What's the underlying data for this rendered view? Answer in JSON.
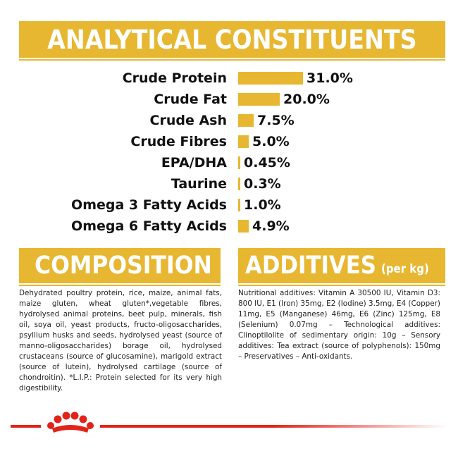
{
  "analytical": {
    "title": "ANALYTICAL CONSTITUENTS",
    "rows": [
      {
        "label": "Crude Protein",
        "value": "31.0%",
        "fraction": 0.31
      },
      {
        "label": "Crude Fat",
        "value": "20.0%",
        "fraction": 0.2
      },
      {
        "label": "Crude Ash",
        "value": "7.5%",
        "fraction": 0.075
      },
      {
        "label": "Crude Fibres",
        "value": "5.0%",
        "fraction": 0.05
      },
      {
        "label": "EPA/DHA",
        "value": "0.45%",
        "fraction": 0.0045
      },
      {
        "label": "Taurine",
        "value": "0.3%",
        "fraction": 0.003
      },
      {
        "label": "Omega 3 Fatty Acids",
        "value": "1.0%",
        "fraction": 0.01
      },
      {
        "label": "Omega 6 Fatty Acids",
        "value": "4.9%",
        "fraction": 0.049
      }
    ]
  },
  "composition": {
    "title": "COMPOSITION",
    "text": "Dehydrated poultry protein, rice, maize, animal fats, maize gluten, wheat gluten*,vegetable fibres, hydrolysed animal proteins, beet pulp, minerals, fish oil, soya oil, yeast products, fructo-oligosaccharides, psyllium husks and seeds, hydrolysed yeast (source of manno-oligosaccharides) borage oil, hydrolysed crustaceans (source of glucosamine), marigold extract (source of lutein), hydrolysed cartilage (source of chondroitin). *L.I.P.: Protein selected for its very high digestibility."
  },
  "additives": {
    "title": "ADDITIVES",
    "subtitle": "(per kg)",
    "text": "Nutritional additives: Vitamin A 30500 IU, Vitamin D3: 800 IU, E1 (Iron) 35mg, E2 (Iodine) 3.5mg, E4 (Copper) 11mg, E5 (Manganese) 46mg, E6 (Zinc) 125mg, E8 (Selenium) 0.07mg – Technological additives: Clinoptilolite of sedimentary origin: 10g – Sensory additives: Tea extract (source of polyphenols): 150mg – Preservatives – Anti-oxidants."
  },
  "colors": {
    "accent": "#e7b731",
    "brand_red": "#e2231a"
  },
  "icons": {
    "logo": "royal-canin-crown-icon"
  }
}
